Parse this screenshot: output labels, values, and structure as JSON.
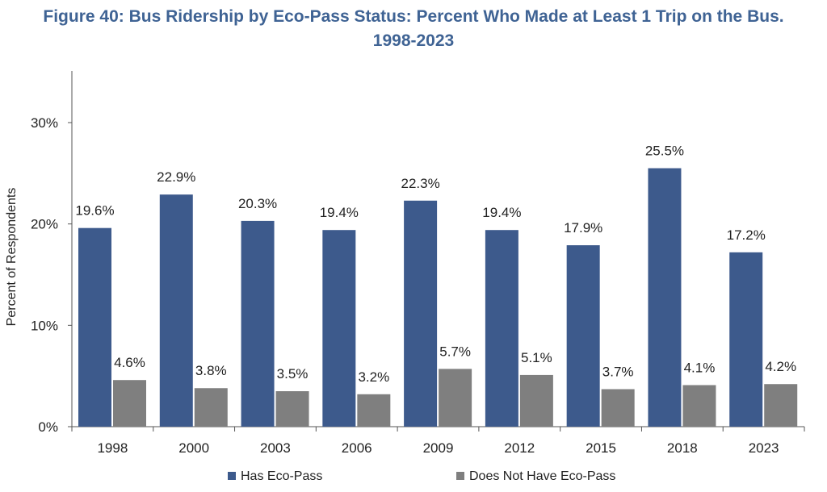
{
  "title_line1": "Figure 40: Bus Ridership by Eco-Pass Status: Percent Who Made at Least 1 Trip on the Bus.",
  "title_line2": "1998-2023",
  "colors": {
    "has_eco_pass": "#3d5a8c",
    "no_eco_pass": "#7f7f7f",
    "title": "#3f6394"
  },
  "chart_data": {
    "type": "bar",
    "categories": [
      "1998",
      "2000",
      "2003",
      "2006",
      "2009",
      "2012",
      "2015",
      "2018",
      "2023"
    ],
    "series": [
      {
        "name": "Has Eco-Pass",
        "values": [
          19.6,
          22.9,
          20.3,
          19.4,
          22.3,
          19.4,
          17.9,
          25.5,
          17.2
        ]
      },
      {
        "name": "Does Not Have Eco-Pass",
        "values": [
          4.6,
          3.8,
          3.5,
          3.2,
          5.7,
          5.1,
          3.7,
          4.1,
          4.2
        ]
      }
    ],
    "ylabel": "Percent of Respondents",
    "xlabel": "",
    "ylim": [
      0,
      30
    ],
    "yticks": [
      "0%",
      "10%",
      "20%",
      "30%"
    ],
    "ytick_values": [
      0,
      10,
      20,
      30
    ],
    "value_suffix": "%",
    "grid": false,
    "legend_position": "bottom"
  }
}
